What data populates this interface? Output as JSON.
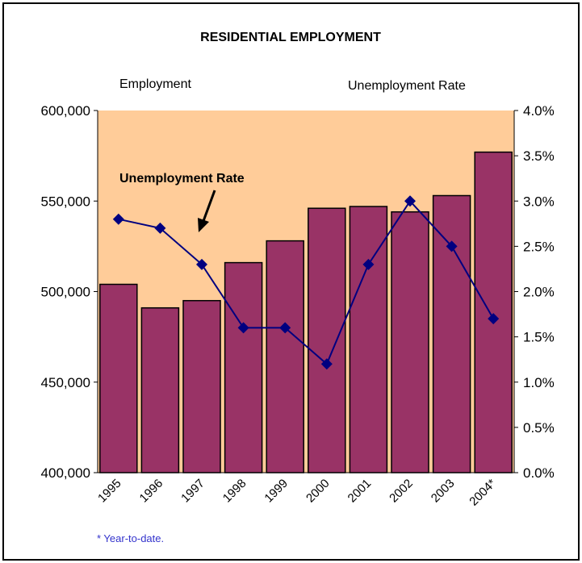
{
  "chart_data": {
    "type": "bar",
    "title": "RESIDENTIAL EMPLOYMENT",
    "ylabel_left": "Employment",
    "ylabel_right": "Unemployment Rate",
    "categories": [
      "1995",
      "1996",
      "1997",
      "1998",
      "1999",
      "2000",
      "2001",
      "2002",
      "2003",
      "2004*"
    ],
    "series": [
      {
        "name": "Employment",
        "type": "bar",
        "axis": "left",
        "values": [
          504000,
          491000,
          495000,
          516000,
          528000,
          546000,
          547000,
          544000,
          553000,
          577000
        ]
      },
      {
        "name": "Unemployment Rate",
        "type": "line",
        "axis": "right",
        "values": [
          2.8,
          2.7,
          2.3,
          1.6,
          1.6,
          1.2,
          2.3,
          3.0,
          2.5,
          1.7
        ]
      }
    ],
    "y_left": {
      "min": 400000,
      "max": 600000,
      "ticks": [
        "400,000",
        "450,000",
        "500,000",
        "550,000",
        "600,000"
      ]
    },
    "y_right": {
      "min": 0,
      "max": 4,
      "ticks": [
        "0.0%",
        "0.5%",
        "1.0%",
        "1.5%",
        "2.0%",
        "2.5%",
        "3.0%",
        "3.5%",
        "4.0%"
      ]
    },
    "annotation": "Unemployment Rate",
    "footnote": "* Year-to-date.",
    "colors": {
      "plot_bg": "#ffcc99",
      "bar": "#993366",
      "line": "#000080"
    }
  }
}
